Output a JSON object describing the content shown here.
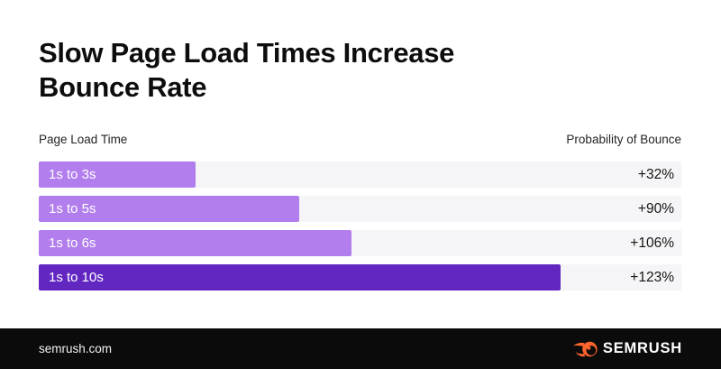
{
  "title": "Slow Page Load Times Increase Bounce Rate",
  "title_lines": [
    "Slow Page Load Times Increase",
    "Bounce Rate"
  ],
  "column_headers": {
    "left": "Page Load Time",
    "right": "Probability of Bounce"
  },
  "chart_data": {
    "type": "bar",
    "orientation": "horizontal",
    "title": "Slow Page Load Times Increase Bounce Rate",
    "xlabel": "Page Load Time",
    "ylabel": "Probability of Bounce",
    "categories": [
      "1s to 3s",
      "1s to 5s",
      "1s to 6s",
      "1s to 10s"
    ],
    "values": [
      32,
      90,
      106,
      123
    ],
    "bar_scale_pct_per_second": 8.12,
    "rows": [
      {
        "label": "1s to 3s",
        "seconds": 3,
        "value": 32,
        "value_label": "+32%",
        "emphasis": false
      },
      {
        "label": "1s to 5s",
        "seconds": 5,
        "value": 90,
        "value_label": "+90%",
        "emphasis": false
      },
      {
        "label": "1s to 6s",
        "seconds": 6,
        "value": 106,
        "value_label": "+106%",
        "emphasis": false
      },
      {
        "label": "1s to 10s",
        "seconds": 10,
        "value": 123,
        "value_label": "+123%",
        "emphasis": true
      }
    ],
    "legend": "none",
    "grid": "off"
  },
  "footer": {
    "site": "semrush.com",
    "logo_text": "SEMRUSH",
    "logo_icon": "semrush-flame-icon"
  },
  "theme": {
    "background": "#ffffff",
    "title_color": "#0d0d0d",
    "track": "#f5f4f6",
    "accent_light": "#b27eed",
    "accent_dark": "#6227c0",
    "value_text": "#161616",
    "footer_bg": "#0b0b0b",
    "footer_text": "#f2f2f2",
    "logo_orange": "#ff642d"
  }
}
